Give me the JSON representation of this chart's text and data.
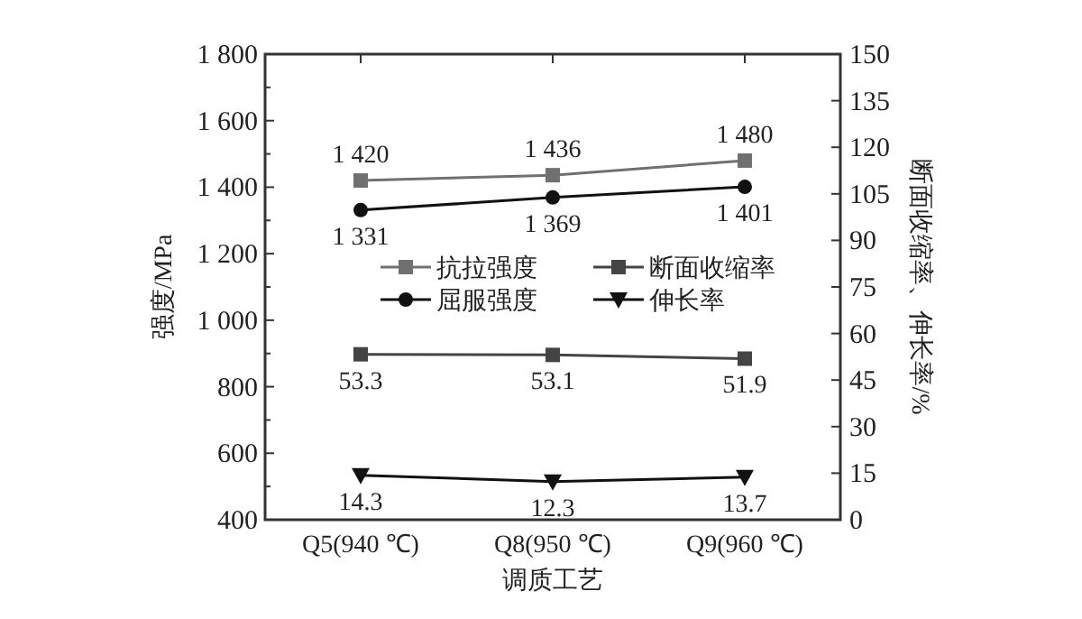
{
  "chart_data": {
    "type": "line",
    "xlabel": "调质工艺",
    "ylabel": "强度/MPa",
    "y2label": "断面收缩率、伸长率/%",
    "categories": [
      "Q5(940 ℃)",
      "Q8(950 ℃)",
      "Q9(960 ℃)"
    ],
    "ylim": [
      400,
      1800
    ],
    "yticks": [
      {
        "value": 400,
        "label": "400"
      },
      {
        "value": 600,
        "label": "600"
      },
      {
        "value": 800,
        "label": "800"
      },
      {
        "value": 1000,
        "label": "1 000"
      },
      {
        "value": 1200,
        "label": "1 200"
      },
      {
        "value": 1400,
        "label": "1 400"
      },
      {
        "value": 1600,
        "label": "1 600"
      },
      {
        "value": 1800,
        "label": "1 800"
      }
    ],
    "y2lim": [
      0,
      150
    ],
    "y2ticks": [
      0,
      15,
      30,
      45,
      60,
      75,
      90,
      105,
      120,
      135,
      150
    ],
    "grid": false,
    "legend": "center",
    "line_style": "solid",
    "series": [
      {
        "name": "抗拉强度",
        "color": "#707070",
        "marker": "square",
        "values": [
          1420,
          1436,
          1480
        ],
        "value_labels": [
          "1 420",
          "1 436",
          "1 480"
        ]
      },
      {
        "name": "屈服强度",
        "color": "#111111",
        "marker": "circle",
        "values": [
          1331,
          1369,
          1401
        ],
        "value_labels": [
          "1 331",
          "1 369",
          "1 401"
        ]
      },
      {
        "name": "断面收缩率",
        "color": "#444444",
        "marker": "square",
        "axis": "y2",
        "values": [
          53.3,
          53.1,
          51.9
        ],
        "value_labels": [
          "53.3",
          "53.1",
          "51.9"
        ]
      },
      {
        "name": "伸长率",
        "color": "#111111",
        "marker": "triangle",
        "axis": "y2",
        "values": [
          14.3,
          12.3,
          13.7
        ],
        "value_labels": [
          "14.3",
          "12.3",
          "13.7"
        ]
      }
    ]
  }
}
